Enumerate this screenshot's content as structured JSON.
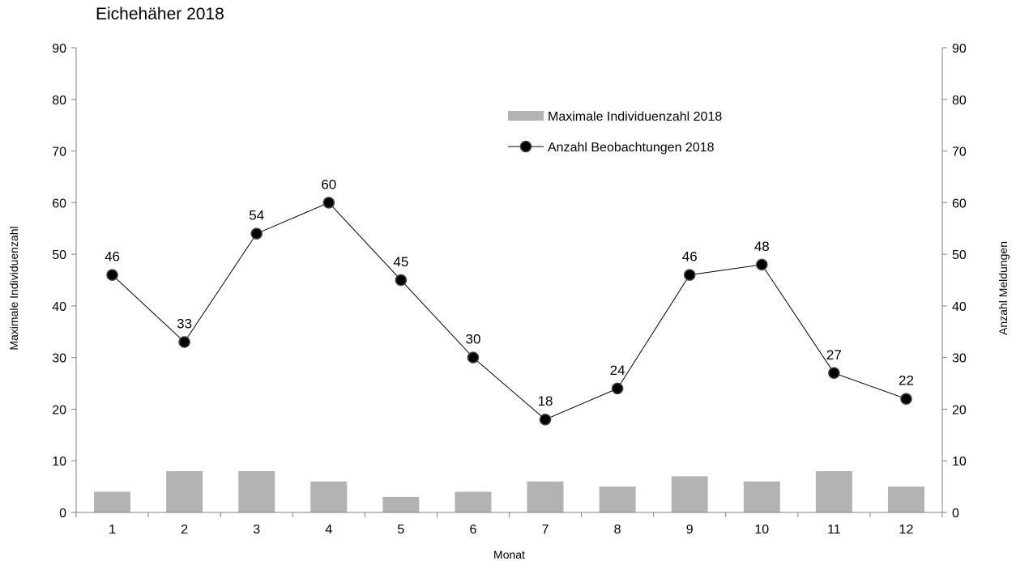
{
  "chart_data": {
    "type": "bar",
    "title": "Eichehäher 2018",
    "xlabel": "Monat",
    "ylabel_left": "Maximale Individuenzahl",
    "ylabel_right": "Anzahl Meldungen",
    "categories": [
      "1",
      "2",
      "3",
      "4",
      "5",
      "6",
      "7",
      "8",
      "9",
      "10",
      "11",
      "12"
    ],
    "ylim_left": [
      0,
      90
    ],
    "ylim_right": [
      0,
      90
    ],
    "yticks": [
      "0",
      "10",
      "20",
      "30",
      "40",
      "50",
      "60",
      "70",
      "80",
      "90"
    ],
    "grid": false,
    "legend_position": "top-right",
    "series": [
      {
        "name": "Maximale Individuenzahl 2018",
        "type": "bar",
        "axis": "left",
        "color": "#b3b3b3",
        "values": [
          4,
          8,
          8,
          6,
          3,
          4,
          6,
          5,
          7,
          6,
          8,
          5
        ]
      },
      {
        "name": "Anzahl Beobachtungen 2018",
        "type": "line",
        "axis": "right",
        "color": "#000000",
        "marker": "circle",
        "values": [
          46,
          33,
          54,
          60,
          45,
          30,
          18,
          24,
          46,
          48,
          27,
          22
        ],
        "data_labels": [
          "46",
          "33",
          "54",
          "60",
          "45",
          "30",
          "18",
          "24",
          "46",
          "48",
          "27",
          "22"
        ]
      }
    ]
  }
}
